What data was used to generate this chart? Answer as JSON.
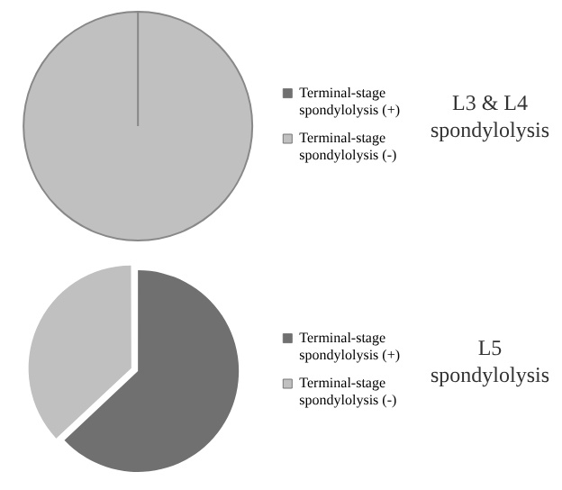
{
  "chart_data": [
    {
      "type": "pie",
      "title": "L3 & L4 spondylolysis",
      "categories": [
        "Terminal-stage spondylolysis (+)",
        "Terminal-stage spondylolysis (-)"
      ],
      "values": [
        0,
        100
      ],
      "colors": [
        "#707070",
        "#c0c0c0"
      ],
      "legend": "right"
    },
    {
      "type": "pie",
      "title": "L5 spondylolysis",
      "categories": [
        "Terminal-stage spondylolysis (+)",
        "Terminal-stage spondylolysis (-)"
      ],
      "values": [
        63,
        37
      ],
      "colors": [
        "#707070",
        "#c0c0c0"
      ],
      "legend": "right"
    }
  ]
}
